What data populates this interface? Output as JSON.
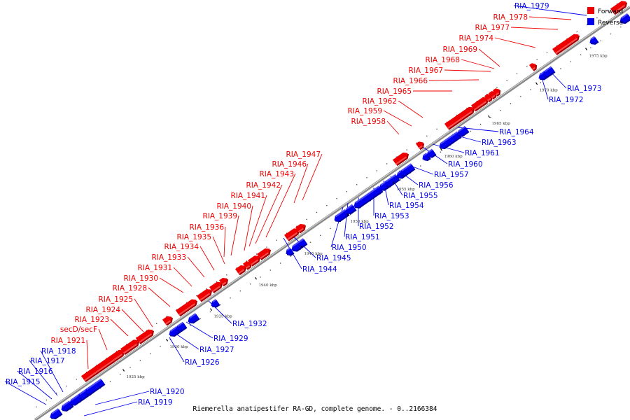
{
  "caption": "Riemerella anatipestifer RA-GD, complete genome. - 0..2166384",
  "legend": {
    "forward_label": "Forward",
    "reverse_label": "Reverse",
    "forward_color": "#ee0000",
    "reverse_color": "#0000ee"
  },
  "colors": {
    "forward": "#ee0000",
    "forward_light": "#ff8a8a",
    "forward_dark": "#a00000",
    "reverse": "#0000ee",
    "reverse_light": "#8a8aff",
    "reverse_dark": "#0000a0",
    "backbone": "#888888",
    "backbone_light": "#dddddd"
  },
  "scale_ticks": [
    "1925 kbp",
    "1930 kbp",
    "1935 kbp",
    "1940 kbp",
    "1945 kbp",
    "1950 kbp",
    "1955 kbp",
    "1960 kbp",
    "1965 kbp",
    "1970 kbp",
    "1975 kbp"
  ],
  "forward_genes": [
    "RIA_1921",
    "secD/secF",
    "RIA_1923",
    "RIA_1924",
    "RIA_1925",
    "RIA_1928",
    "RIA_1930",
    "RIA_1931",
    "RIA_1933",
    "RIA_1934",
    "RIA_1935",
    "RIA_1936",
    "RIA_1939",
    "RIA_1940",
    "RIA_1941",
    "RIA_1942",
    "RIA_1943",
    "RIA_1946",
    "RIA_1947",
    "RIA_1958",
    "RIA_1959",
    "RIA_1962",
    "RIA_1965",
    "RIA_1966",
    "RIA_1967",
    "RIA_1968",
    "RIA_1969",
    "RIA_1974",
    "RIA_1977",
    "RIA_1978"
  ],
  "reverse_genes": [
    "RIA_1915",
    "RIA_1916",
    "RIA_1917",
    "RIA_1918",
    "RIA_1919",
    "RIA_1920",
    "RIA_1926",
    "RIA_1927",
    "RIA_1929",
    "RIA_1932",
    "RIA_1944",
    "RIA_1945",
    "RIA_1950",
    "RIA_1951",
    "RIA_1952",
    "RIA_1953",
    "RIA_1954",
    "RIA_1955",
    "RIA_1956",
    "RIA_1957",
    "RIA_1960",
    "RIA_1961",
    "RIA_1963",
    "RIA_1964",
    "RIA_1972",
    "RIA_1973",
    "RIA_1979"
  ]
}
